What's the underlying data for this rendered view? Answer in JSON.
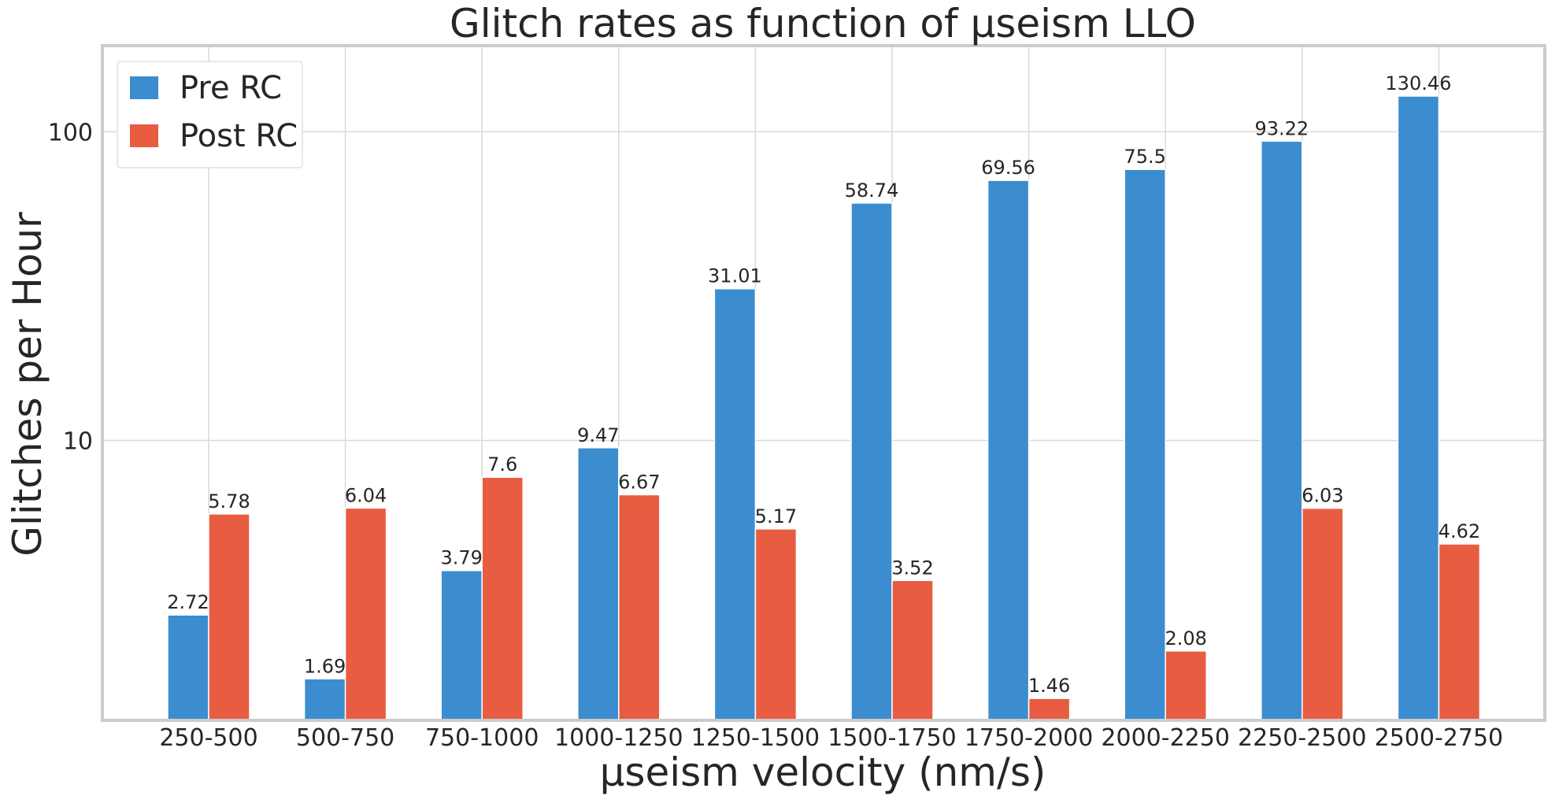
{
  "chart_data": {
    "type": "bar",
    "title": "Glitch rates as function of μseism LLO",
    "xlabel": "μseism velocity (nm/s)",
    "ylabel": "Glitches per Hour",
    "yscale": "log",
    "ylim": [
      1.24,
      190
    ],
    "yticks": [
      10,
      100
    ],
    "ytick_labels": [
      "10",
      "100"
    ],
    "grid": true,
    "legend_position": "top-left",
    "categories": [
      "250-500",
      "500-750",
      "750-1000",
      "1000-1250",
      "1250-1500",
      "1500-1750",
      "1750-2000",
      "2000-2250",
      "2250-2500",
      "2500-2750"
    ],
    "series": [
      {
        "name": "Pre RC",
        "color": "#3c8dcf",
        "values": [
          2.72,
          1.69,
          3.79,
          9.47,
          31.01,
          58.74,
          69.56,
          75.5,
          93.22,
          130.46
        ],
        "labels": [
          "2.72",
          "1.69",
          "3.79",
          "9.47",
          "31.01",
          "58.74",
          "69.56",
          "75.5",
          "93.22",
          "130.46"
        ]
      },
      {
        "name": "Post RC",
        "color": "#e85c41",
        "values": [
          5.78,
          6.04,
          7.6,
          6.67,
          5.17,
          3.52,
          1.46,
          2.08,
          6.03,
          4.62
        ],
        "labels": [
          "5.78",
          "6.04",
          "7.6",
          "6.67",
          "5.17",
          "3.52",
          "1.46",
          "2.08",
          "6.03",
          "4.62"
        ]
      }
    ]
  }
}
